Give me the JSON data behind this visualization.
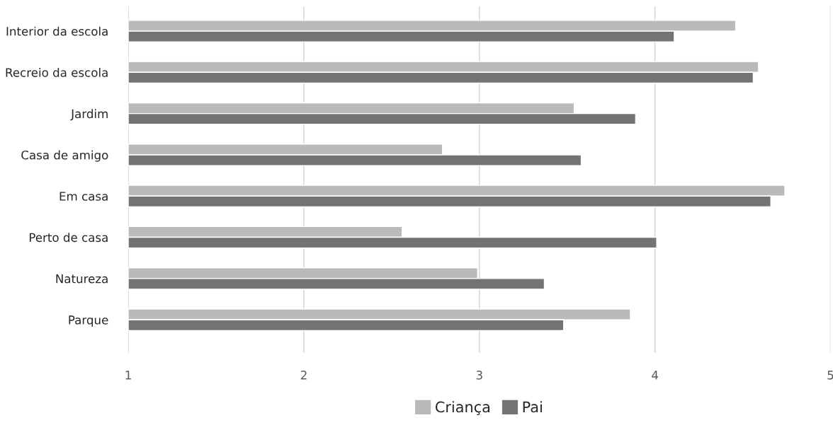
{
  "chart_data": {
    "type": "bar",
    "orientation": "horizontal",
    "categories": [
      "Interior da escola",
      "Recreio da escola",
      "Jardim",
      "Casa de amigo",
      "Em casa",
      "Perto de casa",
      "Natureza",
      "Parque"
    ],
    "series": [
      {
        "name": "Criança",
        "color": "#bababa",
        "values": [
          4.46,
          4.59,
          3.54,
          2.79,
          4.74,
          2.56,
          2.99,
          3.86
        ]
      },
      {
        "name": "Pai",
        "color": "#737373",
        "values": [
          4.11,
          4.56,
          3.89,
          3.58,
          4.66,
          4.01,
          3.37,
          3.48
        ]
      }
    ],
    "xlim": [
      1,
      5
    ],
    "xticks": [
      1,
      2,
      3,
      4,
      5
    ],
    "grid": "x",
    "legend": "bottom"
  }
}
